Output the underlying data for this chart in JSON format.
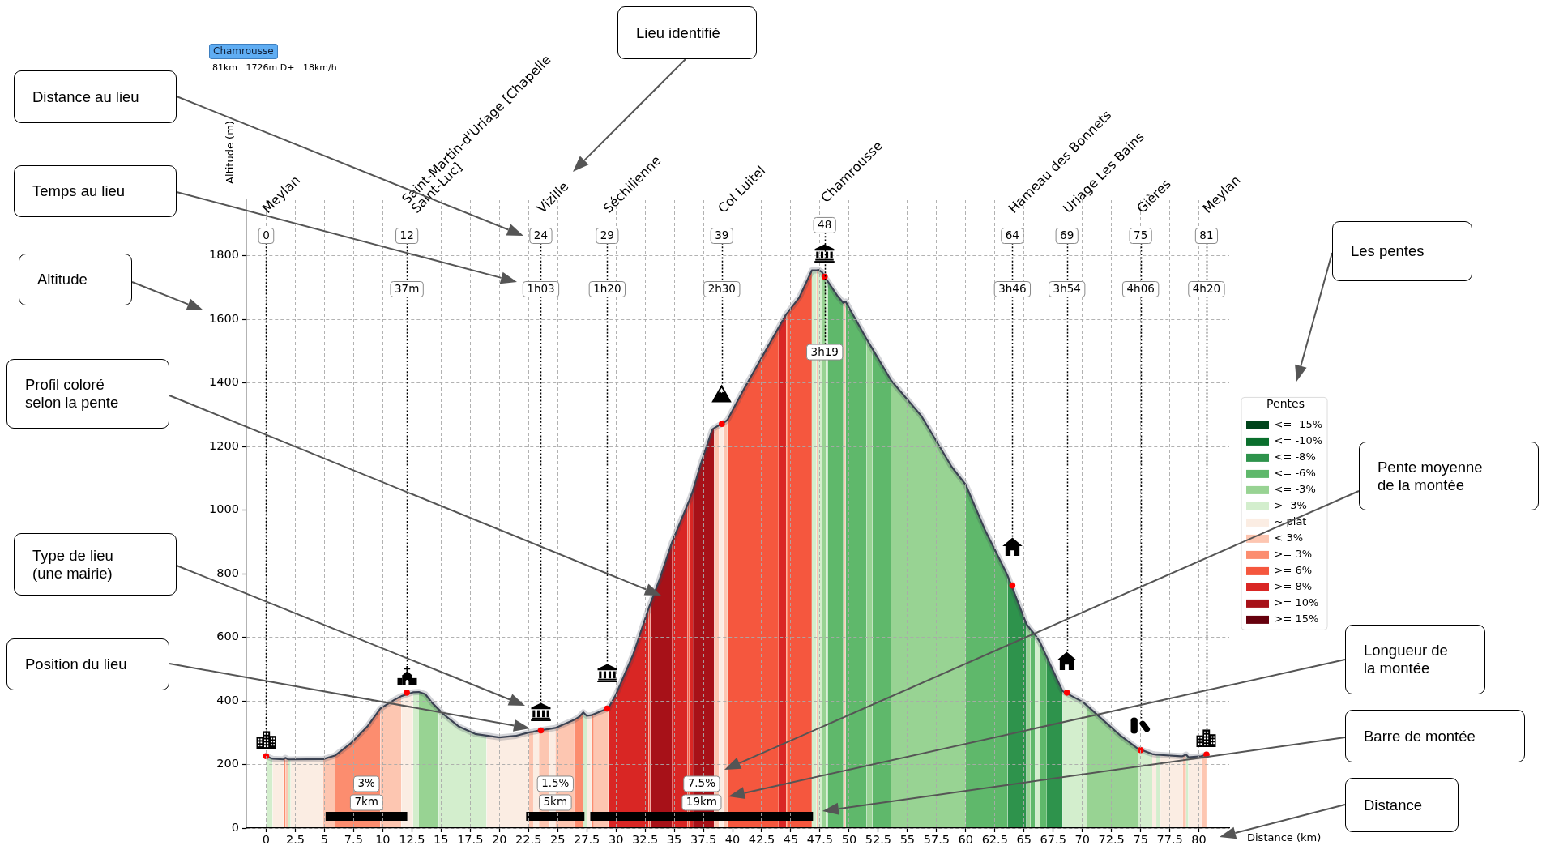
{
  "chart_data": {
    "type": "area",
    "title": "Chamrousse",
    "subtitle": "81km   1726m D+   18km/h",
    "xlabel": "Distance (km)",
    "ylabel": "Altitude (m)",
    "legend_title": "Pentes",
    "legend": "right",
    "grid": true,
    "xlim": [
      -1.7,
      82.6
    ],
    "ylim": [
      0,
      1975
    ],
    "xticks": [
      0,
      2.5,
      5,
      7.5,
      10,
      12.5,
      15,
      17.5,
      20,
      22.5,
      25,
      27.5,
      30,
      32.5,
      35,
      37.5,
      40,
      42.5,
      45,
      47.5,
      50,
      52.5,
      55,
      57.5,
      60,
      62.5,
      65,
      67.5,
      70,
      72.5,
      75,
      77.5,
      80
    ],
    "yticks": [
      0,
      200,
      400,
      600,
      800,
      1000,
      1200,
      1400,
      1600,
      1800
    ],
    "series": [
      {
        "name": "<= -15%",
        "color": "#00441b"
      },
      {
        "name": "<= -10%",
        "color": "#0a6f2d"
      },
      {
        "name": "<= -8%",
        "color": "#2e934c",
        "x": [
          63.6,
          64.0,
          65.2,
          66,
          66.95,
          67.16,
          68.3
        ],
        "values": [
          793,
          763,
          642,
          null,
          538,
          521,
          431
        ]
      },
      {
        "name": "<= -6%",
        "color": "#5fb86b",
        "x": [
          48.16,
          48.97,
          49.5,
          49.6,
          49.7,
          51.5,
          51.7,
          52.0,
          53.6,
          56,
          60.0,
          61.68,
          63.29,
          63.6,
          64.5,
          65.55,
          65.95,
          66.1,
          66.35,
          66.95
        ],
        "values": [
          1720,
          1675,
          1652,
          null,
          1656,
          1538,
          null,
          1507,
          1408,
          null,
          1080,
          935,
          817,
          793,
          null,
          625,
          608,
          null,
          586,
          538
        ]
      },
      {
        "name": "<= -3%",
        "color": "#98d393",
        "x": [
          13.1,
          13.65,
          14.23,
          14.8,
          30,
          47.67,
          48.0,
          49,
          51.5,
          52.0,
          52.5,
          53.6,
          56.2,
          58.8,
          60.0,
          62,
          65.2,
          65.55,
          68,
          70.4,
          71.68,
          73.3,
          74.75
        ],
        "values": [
          428,
          421,
          394,
          373,
          null,
          1749,
          1728,
          null,
          1538,
          1507,
          null,
          1408,
          1296,
          1136,
          1080,
          null,
          642,
          625,
          null,
          385,
          343,
          290,
          250
        ]
      },
      {
        "name": "> -3%",
        "color": "#d3eecd",
        "x": [
          0,
          0.55,
          1.2,
          1.9,
          2.1,
          7,
          12.6,
          13.1,
          14,
          14.8,
          15.15,
          16.54,
          17.93,
          18.9,
          23,
          27.2,
          27.5,
          37,
          46.8,
          47.2,
          47.3,
          47.35,
          47.67,
          47.8,
          48.0,
          48.16,
          57,
          65.95,
          66.35,
          67,
          68.3,
          68.68,
          70.07,
          70.4,
          72,
          74.75,
          75.0,
          76.0,
          76.2,
          76.35,
          76.7,
          78,
          78.9,
          79.1
        ],
        "values": [
          226,
          218,
          null,
          216,
          216,
          null,
          427,
          428,
          null,
          373,
          360,
          319,
          296,
          291,
          null,
          364,
          353,
          null,
          1754,
          1754,
          null,
          1756,
          1749,
          null,
          1728,
          1720,
          null,
          608,
          586,
          null,
          431,
          426,
          396,
          385,
          null,
          250,
          245,
          233,
          null,
          231,
          230,
          null,
          231,
          223
        ]
      },
      {
        "name": "~ plat",
        "color": "#fbede3",
        "x": [
          0.55,
          1.48,
          1.8,
          2.1,
          4.9,
          8,
          11.6,
          12.07,
          12.6,
          15,
          18.9,
          20.0,
          21.4,
          22.55,
          22.7,
          22.9,
          23.4,
          24,
          24.3,
          24.8,
          26,
          27.5,
          27.9,
          33,
          38.85,
          39.2,
          60,
          76.0,
          76.35,
          76.5,
          76.7,
          78.45,
          78.6,
          79,
          79.1,
          80.2
        ],
        "values": [
          218,
          216,
          null,
          216,
          217,
          null,
          415,
          426,
          427,
          null,
          291,
          285,
          290,
          301,
          null,
          303,
          307,
          null,
          312,
          315,
          null,
          353,
          355,
          null,
          1267,
          1273,
          null,
          233,
          231,
          null,
          230,
          226,
          226,
          null,
          223,
          226
        ]
      },
      {
        "name": "< 3%",
        "color": "#fdc6b1",
        "x": [
          1.65,
          1.9,
          3,
          4.9,
          5.9,
          7,
          9.8,
          10.98,
          11.6,
          20,
          22.55,
          22.9,
          23.2,
          23.4,
          24.3,
          24.5,
          24.8,
          26.4,
          27,
          28.1,
          29.25,
          29.35,
          34,
          38.43,
          38.85,
          39,
          39.2,
          39.57,
          43,
          47.2,
          47.35,
          48,
          49.5,
          49.7,
          60,
          78.6,
          78.9,
          79.5,
          80.2,
          80.65
        ],
        "values": [
          221,
          216,
          null,
          217,
          228,
          null,
          376,
          403,
          415,
          null,
          301,
          303,
          null,
          307,
          312,
          null,
          315,
          340,
          null,
          358,
          376,
          377,
          null,
          1258,
          1267,
          null,
          1273,
          1284,
          null,
          1754,
          1756,
          null,
          1652,
          1656,
          null,
          226,
          231,
          null,
          226,
          231
        ]
      },
      {
        "name": ">= 3%",
        "color": "#fc8d6f",
        "x": [
          1.48,
          1.65,
          3,
          5.9,
          7.28,
          8.67,
          9.8,
          20,
          26.4,
          26.85,
          27.2,
          27.7,
          27.9,
          28.1,
          40,
          44.6,
          44.76
        ],
        "values": [
          216,
          221,
          null,
          228,
          267,
          319,
          376,
          null,
          340,
          350,
          364,
          null,
          355,
          358,
          null,
          1616,
          1623
        ]
      },
      {
        "name": ">= 6%",
        "color": "#f5573e",
        "x": [
          32.8,
          32.95,
          34,
          36.15,
          36.3,
          38,
          39.57,
          40.86,
          42.49,
          43.95,
          44.3,
          44.76,
          45.73,
          46.8
        ],
        "values": [
          690,
          705,
          null,
          1018,
          1031,
          null,
          1284,
          1373,
          1479,
          1574,
          null,
          1623,
          1669,
          1754
        ]
      },
      {
        "name": ">= 8%",
        "color": "#d92624",
        "x": [
          29.35,
          30,
          31.46,
          32.8,
          33.5,
          34.8,
          36.15,
          36.2,
          36.3,
          36.6,
          40,
          43.95,
          44.6
        ],
        "values": [
          377,
          420,
          544,
          690,
          null,
          898,
          1018,
          null,
          1031,
          1061,
          null,
          1574,
          1616
        ]
      },
      {
        "name": ">= 10%",
        "color": "#a71118",
        "x": [
          32.95,
          33.73,
          34.8,
          35.5,
          36.6,
          37.3,
          38.27,
          38.43
        ],
        "values": [
          705,
          781,
          898,
          null,
          1061,
          1148,
          1254,
          1258
        ]
      },
      {
        "name": ">= 15%",
        "color": "#66000d"
      },
      {
        "type": "line",
        "color": "#3b4252",
        "x": [
          0,
          0.55,
          1.48,
          1.65,
          1.9,
          2.1,
          4.9,
          5.9,
          7.28,
          8.67,
          9.8,
          10.98,
          11.6,
          12.6,
          13.1,
          13.65,
          14.23,
          14.8,
          15.15,
          16.54,
          17.93,
          18.9,
          20.0,
          21.4,
          22.55,
          22.9,
          23.4,
          24.3,
          24.8,
          26.4,
          26.85,
          27.2,
          27.5,
          27.9,
          28.1,
          29.35,
          30.0,
          31.46,
          32.8,
          32.95,
          33.73,
          34.8,
          36.15,
          36.3,
          36.6,
          37.3,
          38.27,
          38.43,
          38.85,
          39.2,
          39.57,
          40.86,
          42.49,
          43.95,
          44.6,
          44.76,
          45.73,
          46.8,
          47.2,
          47.35,
          47.67,
          48.0,
          48.16,
          48.97,
          49.5,
          49.7,
          51.5,
          52.0,
          53.6,
          56.2,
          58.8,
          60.0,
          61.68,
          63.29,
          63.6,
          65.2,
          65.55,
          65.95,
          66.35,
          66.95,
          67.16,
          68.3,
          70.07,
          70.4,
          71.68,
          73.3,
          74.75,
          76.0,
          76.35,
          76.7,
          78.45,
          78.6,
          78.9,
          79.1,
          80.2,
          80.65
        ],
        "values": [
          226,
          218,
          216,
          221,
          216,
          216,
          217,
          228,
          267,
          319,
          376,
          403,
          415,
          427,
          428,
          421,
          394,
          373,
          360,
          319,
          296,
          291,
          285,
          290,
          301,
          303,
          307,
          312,
          315,
          340,
          350,
          364,
          353,
          355,
          358,
          377,
          420,
          544,
          690,
          705,
          781,
          898,
          1018,
          1031,
          1061,
          1148,
          1254,
          1258,
          1267,
          1273,
          1284,
          1373,
          1479,
          1574,
          1616,
          1623,
          1669,
          1754,
          1754,
          1756,
          1749,
          1728,
          1720,
          1675,
          1652,
          1656,
          1538,
          1507,
          1408,
          1296,
          1136,
          1080,
          935,
          817,
          793,
          642,
          625,
          608,
          586,
          538,
          521,
          431,
          396,
          385,
          343,
          290,
          250,
          233,
          231,
          230,
          226,
          226,
          231,
          223,
          226,
          231
        ]
      },
      {
        "type": "step",
        "color": "#000000",
        "x": [
          5.1,
          12.1,
          17,
          22.3,
          27.3,
          27.55,
          27.8,
          46.9
        ],
        "values": [
          37,
          37,
          null,
          37,
          37,
          null,
          37,
          37
        ]
      },
      {
        "type": "scatter",
        "color": "#ff0000",
        "marker": "circle",
        "x": [
          0,
          12.07,
          23.56,
          29.25,
          39.08,
          47.9,
          64.0,
          68.68,
          75.0,
          80.65
        ],
        "values": [
          226,
          426,
          307,
          376,
          1271,
          1734,
          763,
          426,
          245,
          231
        ]
      }
    ],
    "ref_lines": [
      {
        "axis": "x",
        "value": 0,
        "label": "Meylan",
        "line_style": "dotted",
        "color": "#000000"
      },
      {
        "axis": "x",
        "value": 12.07,
        "label": "Saint-Martin-d'Uriage [Chapelle Saint-Luc]",
        "line_style": "dotted",
        "color": "#000000"
      },
      {
        "axis": "x",
        "value": 23.56,
        "label": "Vizille",
        "line_style": "dotted",
        "color": "#000000"
      },
      {
        "axis": "x",
        "value": 29.25,
        "label": "Séchilienne",
        "line_style": "dotted",
        "color": "#000000"
      },
      {
        "axis": "x",
        "value": 39.08,
        "label": "Col Luitel",
        "line_style": "dotted",
        "color": "#000000"
      },
      {
        "axis": "x",
        "value": 47.9,
        "label": "Chamrousse",
        "line_style": "dotted",
        "color": "#000000"
      },
      {
        "axis": "x",
        "value": 64.0,
        "label": "Hameau des Bonnets",
        "line_style": "dotted",
        "color": "#000000"
      },
      {
        "axis": "x",
        "value": 68.68,
        "label": "Uriage Les Bains",
        "line_style": "dotted",
        "color": "#000000"
      },
      {
        "axis": "x",
        "value": 75.0,
        "label": "Gières",
        "line_style": "dotted",
        "color": "#000000"
      },
      {
        "axis": "x",
        "value": 80.65,
        "label": "Meylan",
        "line_style": "dotted",
        "color": "#000000"
      }
    ],
    "annotations": [
      {
        "text": "0",
        "x": 0
      },
      {
        "text": "12",
        "x": 12.07
      },
      {
        "text": "37m",
        "x": 12.07
      },
      {
        "text": "24",
        "x": 23.56
      },
      {
        "text": "1h03",
        "x": 23.56
      },
      {
        "text": "29",
        "x": 29.25
      },
      {
        "text": "1h20",
        "x": 29.25
      },
      {
        "text": "39",
        "x": 39.08
      },
      {
        "text": "2h30",
        "x": 39.08
      },
      {
        "text": "48",
        "x": 47.9
      },
      {
        "text": "3h19",
        "x": 47.9
      },
      {
        "text": "64",
        "x": 64.0
      },
      {
        "text": "3h46",
        "x": 64.0
      },
      {
        "text": "69",
        "x": 68.68
      },
      {
        "text": "3h54",
        "x": 68.68
      },
      {
        "text": "75",
        "x": 75.0
      },
      {
        "text": "4h06",
        "x": 75.0
      },
      {
        "text": "81",
        "x": 80.65
      },
      {
        "text": "4h20",
        "x": 80.65
      },
      {
        "text": "3%",
        "x": 8.6,
        "y": 37
      },
      {
        "text": "7km",
        "x": 8.6,
        "y": 37
      },
      {
        "text": "1.5%",
        "x": 24.8,
        "y": 37
      },
      {
        "text": "5km",
        "x": 24.8,
        "y": 37
      },
      {
        "text": "7.5%",
        "x": 37.35,
        "y": 37
      },
      {
        "text": "19km",
        "x": 37.35,
        "y": 37
      },
      "Lieu identifié",
      "Distance au lieu",
      "Temps au lieu",
      "Altitude",
      "Profil coloré selon la pente",
      "Type de lieu (une mairie)",
      "Position du lieu",
      "Les pentes",
      "Pente moyenne de la montée",
      "Longueur de la montée",
      "Barre de montée",
      "Distance"
    ]
  }
}
